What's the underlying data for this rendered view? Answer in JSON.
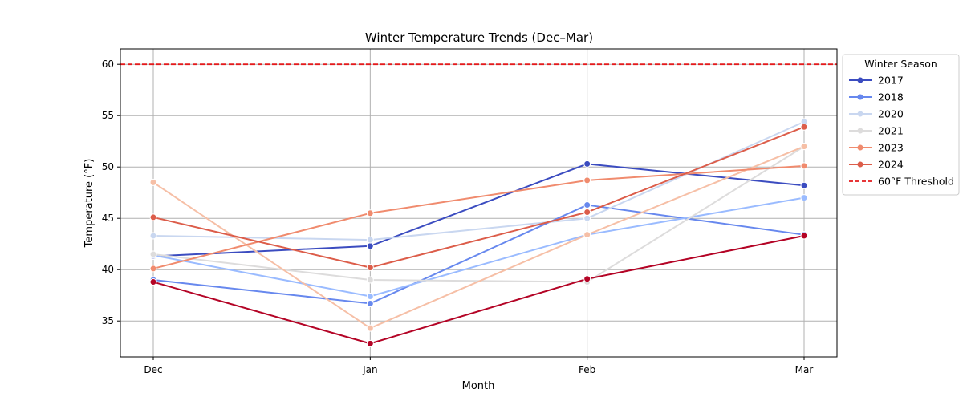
{
  "chart_data": {
    "type": "line",
    "title": "Winter Temperature Trends (Dec–Mar)",
    "xlabel": "Month",
    "ylabel": "Temperature (°F)",
    "categories": [
      "Dec",
      "Jan",
      "Feb",
      "Mar"
    ],
    "ylim": [
      31.5,
      61.5
    ],
    "yticks": [
      35,
      40,
      45,
      50,
      55,
      60
    ],
    "grid": true,
    "legend": {
      "title": "Winter Season",
      "placement": "upper-right-outside"
    },
    "threshold": {
      "name": "60°F Threshold",
      "value": 60,
      "color": "#e41a1c",
      "style": "dashed"
    },
    "series": [
      {
        "name": "2017",
        "color": "#3b4cc0",
        "values": [
          41.3,
          42.3,
          50.3,
          48.2
        ],
        "in_legend": true
      },
      {
        "name": "2018",
        "color": "#6788ee",
        "values": [
          39.0,
          36.7,
          46.3,
          43.4
        ],
        "in_legend": true
      },
      {
        "name": "",
        "color": "#9abbff",
        "values": [
          41.4,
          37.4,
          43.4,
          47.0
        ],
        "in_legend": false
      },
      {
        "name": "2020",
        "color": "#c9d7f0",
        "values": [
          43.3,
          42.9,
          45.0,
          54.4
        ],
        "in_legend": true
      },
      {
        "name": "2021",
        "color": "#dddcdc",
        "values": [
          41.5,
          39.0,
          38.8,
          52.0
        ],
        "in_legend": true
      },
      {
        "name": "",
        "color": "#f6bfa6",
        "values": [
          48.5,
          34.3,
          43.4,
          52.0
        ],
        "in_legend": false
      },
      {
        "name": "2023",
        "color": "#f08b6e",
        "values": [
          40.1,
          45.5,
          48.7,
          50.1
        ],
        "in_legend": true
      },
      {
        "name": "2024",
        "color": "#dc5d4a",
        "values": [
          45.1,
          40.2,
          45.6,
          53.9
        ],
        "in_legend": true
      },
      {
        "name": "",
        "color": "#b40426",
        "values": [
          38.8,
          32.8,
          39.1,
          43.3
        ],
        "in_legend": false
      }
    ]
  }
}
